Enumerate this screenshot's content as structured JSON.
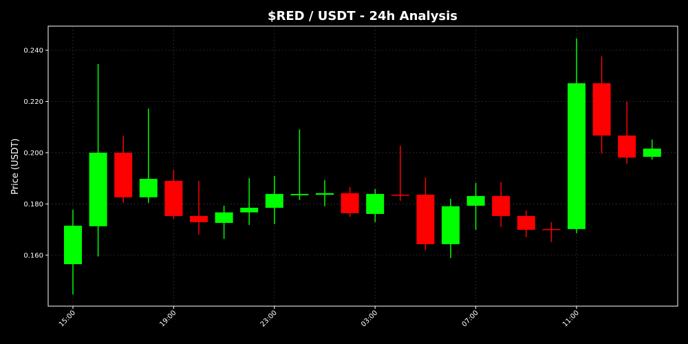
{
  "chart_data": {
    "type": "candlestick",
    "title": "$RED / USDT - 24h Analysis",
    "y_label": "Price (USDT)",
    "categories": [
      "15:00",
      null,
      null,
      null,
      "19:00",
      null,
      null,
      null,
      "23:00",
      null,
      null,
      null,
      "03:00",
      null,
      null,
      null,
      "07:00",
      null,
      null,
      null,
      "11:00",
      null,
      null,
      null
    ],
    "open": [
      0.1565,
      0.1713,
      0.2,
      0.1826,
      0.189,
      0.1753,
      0.1726,
      0.1767,
      0.1785,
      0.1834,
      0.1836,
      0.1842,
      0.1761,
      0.1836,
      0.1836,
      0.1643,
      0.1793,
      0.1831,
      0.1753,
      0.1702,
      0.1702,
      0.2271,
      0.2067,
      0.1984
    ],
    "high": [
      0.1777,
      0.2346,
      0.2066,
      0.2172,
      0.1933,
      0.189,
      0.1793,
      0.1901,
      0.1909,
      0.2091,
      0.1893,
      0.1866,
      0.1858,
      0.2027,
      0.1903,
      0.182,
      0.1882,
      0.1885,
      0.1774,
      0.1729,
      0.2446,
      0.2376,
      0.2199,
      0.2051
    ],
    "low": [
      0.1447,
      0.1595,
      0.1804,
      0.1804,
      0.1742,
      0.1681,
      0.1664,
      0.1718,
      0.1721,
      0.1815,
      0.1791,
      0.175,
      0.1729,
      0.1812,
      0.1619,
      0.1589,
      0.1699,
      0.171,
      0.167,
      0.1651,
      0.1686,
      0.1997,
      0.1957,
      0.1973
    ],
    "close": [
      0.1715,
      0.2,
      0.1826,
      0.1898,
      0.1753,
      0.1729,
      0.1767,
      0.1785,
      0.1839,
      0.1839,
      0.1842,
      0.1764,
      0.1839,
      0.1834,
      0.1643,
      0.1791,
      0.1831,
      0.1753,
      0.1699,
      0.1699,
      0.2271,
      0.2067,
      0.1981,
      0.2016
    ],
    "up_color": "#00ff00",
    "down_color": "#ff0000",
    "ylim": [
      0.1401,
      0.2494
    ],
    "yticks": [
      {
        "value": 0.16,
        "label": "0.160"
      },
      {
        "value": 0.18,
        "label": "0.180"
      },
      {
        "value": 0.2,
        "label": "0.200"
      },
      {
        "value": 0.22,
        "label": "0.220"
      },
      {
        "value": 0.24,
        "label": "0.240"
      }
    ],
    "grid": true
  }
}
